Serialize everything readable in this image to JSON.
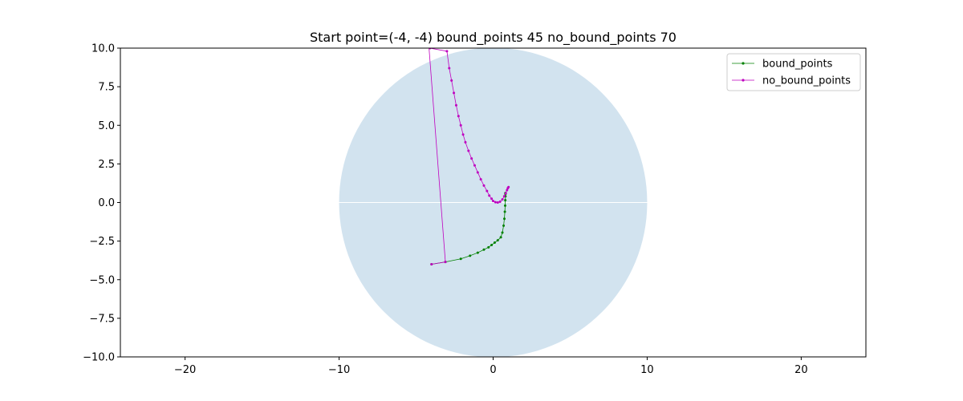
{
  "chart_data": {
    "type": "line",
    "title": "Start point=(-4, -4) bound_points 45 no_bound_points 70",
    "xlabel": "",
    "ylabel": "",
    "xlim": [
      -24.2,
      24.2
    ],
    "ylim": [
      -10,
      10
    ],
    "xticks": [
      -20,
      -10,
      0,
      10,
      20
    ],
    "xtick_labels": [
      "−20",
      "−10",
      "0",
      "10",
      "20"
    ],
    "yticks": [
      -10,
      -7.5,
      -5,
      -2.5,
      0,
      2.5,
      5,
      7.5,
      10
    ],
    "ytick_labels": [
      "−10.0",
      "−7.5",
      "−5.0",
      "−2.5",
      "0.0",
      "2.5",
      "5.0",
      "7.5",
      "10.0"
    ],
    "grid": false,
    "legend_position": "top-right",
    "region": {
      "shape": "disk",
      "center": [
        0,
        0
      ],
      "radius": 10,
      "color": "#d2e3ef"
    },
    "series": [
      {
        "name": "bound_points",
        "color": "#008000",
        "marker": "dot",
        "x": [
          -4.0,
          -3.1,
          -2.1,
          -1.5,
          -1.0,
          -0.6,
          -0.3,
          -0.1,
          0.1,
          0.3,
          0.5,
          0.6,
          0.68,
          0.73,
          0.76,
          0.78,
          0.79,
          0.8,
          0.8,
          0.8,
          0.8
        ],
        "y": [
          -4.0,
          -3.85,
          -3.65,
          -3.45,
          -3.25,
          -3.05,
          -2.9,
          -2.75,
          -2.6,
          -2.45,
          -2.25,
          -1.95,
          -1.5,
          -1.05,
          -0.6,
          -0.2,
          0.15,
          0.4,
          0.55,
          0.6,
          0.62
        ]
      },
      {
        "name": "no_bound_points",
        "color": "#bf00bf",
        "marker": "dot",
        "x": [
          -4.0,
          -3.1,
          -4.2,
          -4.1,
          -3.0,
          -2.85,
          -2.7,
          -2.55,
          -2.4,
          -2.25,
          -2.1,
          -1.95,
          -1.8,
          -1.6,
          -1.4,
          -1.2,
          -1.0,
          -0.8,
          -0.6,
          -0.4,
          -0.25,
          -0.1,
          0.0,
          0.15,
          0.3,
          0.45,
          0.6,
          0.72,
          0.82,
          0.9,
          0.95,
          1.0
        ],
        "y": [
          -4.0,
          -3.85,
          10.5,
          10.0,
          9.8,
          8.7,
          7.9,
          7.1,
          6.3,
          5.6,
          5.0,
          4.4,
          3.9,
          3.35,
          2.85,
          2.4,
          1.95,
          1.5,
          1.1,
          0.75,
          0.45,
          0.25,
          0.1,
          0.02,
          0.0,
          0.05,
          0.2,
          0.4,
          0.6,
          0.8,
          0.92,
          1.0
        ]
      }
    ]
  }
}
